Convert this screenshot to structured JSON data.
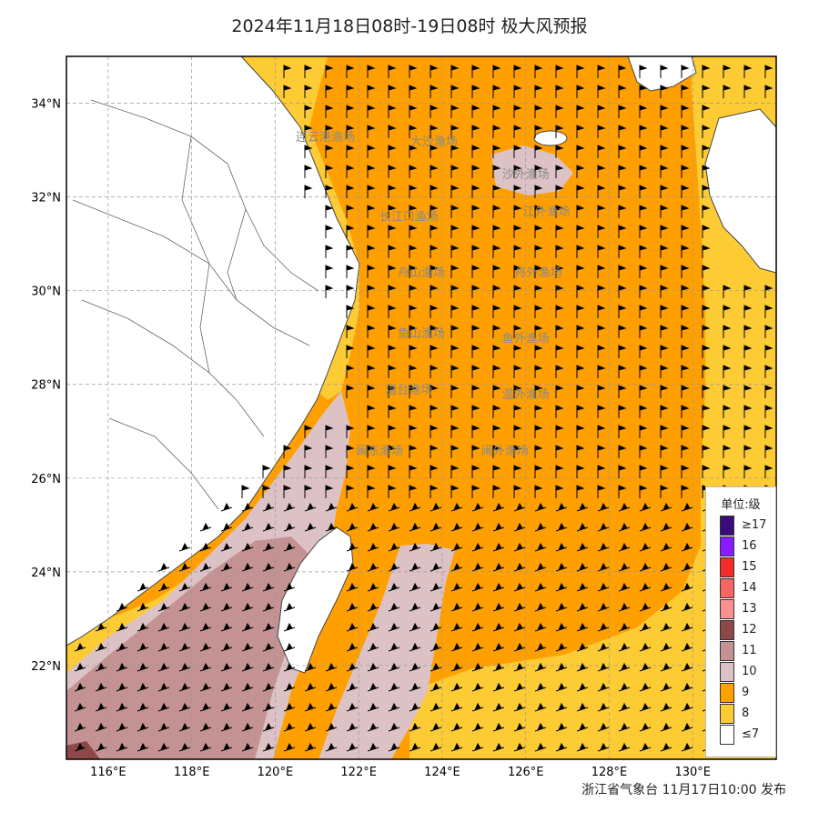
{
  "title": "2024年11月18日08时-19日08时 极大风预报",
  "publisher": "浙江省气象台 11月17日10:00 发布",
  "axes": {
    "lat_ticks": [
      "34°N",
      "32°N",
      "30°N",
      "28°N",
      "26°N",
      "24°N",
      "22°N"
    ],
    "lon_ticks": [
      "116°E",
      "118°E",
      "120°E",
      "122°E",
      "124°E",
      "126°E",
      "128°E",
      "130°E"
    ],
    "lat_range": [
      20,
      35
    ],
    "lon_range": [
      115,
      132
    ],
    "grid": true
  },
  "legend": {
    "title": "单位:级",
    "items": [
      {
        "label": "≥17",
        "color": "#3d0a7a"
      },
      {
        "label": "16",
        "color": "#8a1aff"
      },
      {
        "label": "15",
        "color": "#f22a2a"
      },
      {
        "label": "14",
        "color": "#f76464"
      },
      {
        "label": "13",
        "color": "#fa9090"
      },
      {
        "label": "12",
        "color": "#8e4848"
      },
      {
        "label": "11",
        "color": "#c49292"
      },
      {
        "label": "10",
        "color": "#dcc2c4"
      },
      {
        "label": "9",
        "color": "#ff9f00"
      },
      {
        "label": "8",
        "color": "#fdcb34"
      },
      {
        "label": "≤7",
        "color": "#ffffff"
      }
    ]
  },
  "sea_areas": [
    {
      "label": "连云港渔场",
      "lon": 121.2,
      "lat": 33.2
    },
    {
      "label": "大沙渔场",
      "lon": 123.8,
      "lat": 33.1
    },
    {
      "label": "沙外渔场",
      "lon": 126.0,
      "lat": 32.4
    },
    {
      "label": "长江口渔场",
      "lon": 123.2,
      "lat": 31.5
    },
    {
      "label": "江外渔场",
      "lon": 126.5,
      "lat": 31.6
    },
    {
      "label": "舟山渔场",
      "lon": 123.5,
      "lat": 30.3
    },
    {
      "label": "舟外渔场",
      "lon": 126.3,
      "lat": 30.3
    },
    {
      "label": "鱼山渔场",
      "lon": 123.5,
      "lat": 29.0
    },
    {
      "label": "鱼外渔场",
      "lon": 126.0,
      "lat": 28.9
    },
    {
      "label": "温台渔场",
      "lon": 123.2,
      "lat": 27.8
    },
    {
      "label": "温外渔场",
      "lon": 126.0,
      "lat": 27.7
    },
    {
      "label": "闽东渔场",
      "lon": 122.5,
      "lat": 26.5
    },
    {
      "label": "闽外渔场",
      "lon": 125.5,
      "lat": 26.5
    }
  ],
  "colors": {
    "land": "#ffffff",
    "coast": "#444444",
    "province_border": "#666666",
    "grid": "#999999",
    "sea_label": "#8a8a8a"
  }
}
